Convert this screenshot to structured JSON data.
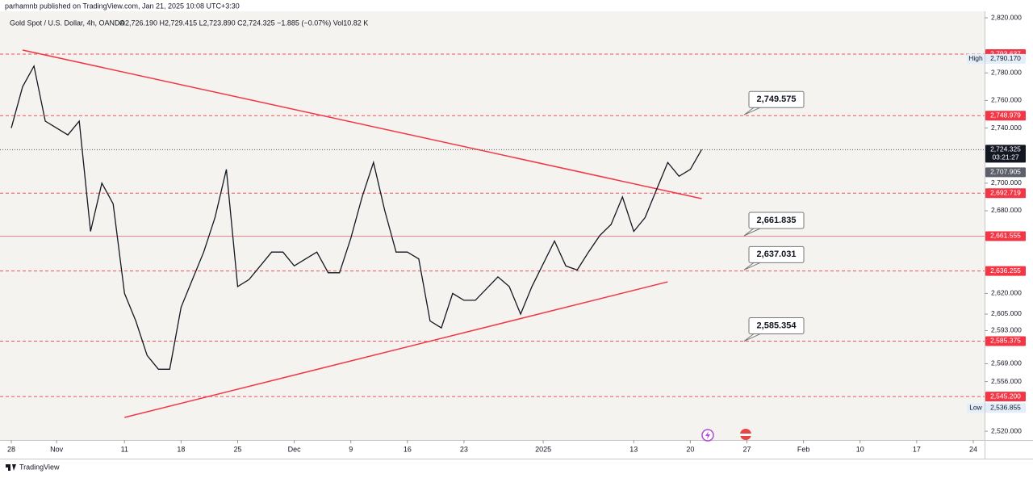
{
  "chart_data": {
    "type": "line",
    "header": "parhamnb published on TradingView.com, Jan 21, 2025 10:08 UTC+3:30",
    "title": "Gold Spot / U.S. Dollar, 4h, OANDA",
    "ohlc": "O2,726.190 H2,729.415 L2,723.890 C2,724.325 −1.885 (−0.07%) Vol10.82 K",
    "brand": "TradingView",
    "xlim": [
      "2024-10-25",
      "2025-02-25"
    ],
    "xticks": [
      {
        "value": "2024-10-28",
        "label": "28"
      },
      {
        "value": "2024-11-01",
        "label": "Nov"
      },
      {
        "value": "2024-11-11",
        "label": "11"
      },
      {
        "value": "2024-11-18",
        "label": "18"
      },
      {
        "value": "2024-11-25",
        "label": "25"
      },
      {
        "value": "2024-12-02",
        "label": "Dec"
      },
      {
        "value": "2024-12-09",
        "label": "9"
      },
      {
        "value": "2024-12-16",
        "label": "16"
      },
      {
        "value": "2024-12-23",
        "label": "23"
      },
      {
        "value": "2025-01-01",
        "label": "2025"
      },
      {
        "value": "2025-01-13",
        "label": "13"
      },
      {
        "value": "2025-01-20",
        "label": "20"
      },
      {
        "value": "2025-01-27",
        "label": "27"
      },
      {
        "value": "2025-02-03",
        "label": "Feb"
      },
      {
        "value": "2025-02-10",
        "label": "10"
      },
      {
        "value": "2025-02-17",
        "label": "17"
      },
      {
        "value": "2025-02-24",
        "label": "24"
      }
    ],
    "ylim": [
      2513.6,
      2832.9
    ],
    "yticks": [
      {
        "value": 2820,
        "label": "2,820.000"
      },
      {
        "value": 2780,
        "label": "2,780.000"
      },
      {
        "value": 2760,
        "label": "2,760.000"
      },
      {
        "value": 2740,
        "label": "2,740.000"
      },
      {
        "value": 2700,
        "label": "2,700.000"
      },
      {
        "value": 2680,
        "label": "2,680.000"
      },
      {
        "value": 2620,
        "label": "2,620.000"
      },
      {
        "value": 2605,
        "label": "2,605.000"
      },
      {
        "value": 2593,
        "label": "2,593.000"
      },
      {
        "value": 2569,
        "label": "2,569.000"
      },
      {
        "value": 2556,
        "label": "2,556.000"
      },
      {
        "value": 2520,
        "label": "2,520.000"
      }
    ],
    "series": [
      {
        "name": "XAUUSD",
        "color": "#131722",
        "x": [
          "2024-10-28",
          "2024-10-29",
          "2024-10-30",
          "2024-10-31",
          "2024-11-01",
          "2024-11-04",
          "2024-11-05",
          "2024-11-06",
          "2024-11-07",
          "2024-11-08",
          "2024-11-11",
          "2024-11-12",
          "2024-11-13",
          "2024-11-14",
          "2024-11-15",
          "2024-11-18",
          "2024-11-19",
          "2024-11-20",
          "2024-11-21",
          "2024-11-22",
          "2024-11-25",
          "2024-11-26",
          "2024-11-27",
          "2024-11-28",
          "2024-11-29",
          "2024-12-02",
          "2024-12-03",
          "2024-12-04",
          "2024-12-05",
          "2024-12-06",
          "2024-12-09",
          "2024-12-10",
          "2024-12-11",
          "2024-12-12",
          "2024-12-13",
          "2024-12-16",
          "2024-12-17",
          "2024-12-18",
          "2024-12-19",
          "2024-12-20",
          "2024-12-23",
          "2024-12-24",
          "2024-12-26",
          "2024-12-27",
          "2024-12-30",
          "2024-12-31",
          "2025-01-02",
          "2025-01-03",
          "2025-01-06",
          "2025-01-07",
          "2025-01-08",
          "2025-01-09",
          "2025-01-10",
          "2025-01-13",
          "2025-01-14",
          "2025-01-15",
          "2025-01-16",
          "2025-01-17",
          "2025-01-20",
          "2025-01-21"
        ],
        "values": [
          2740,
          2770,
          2785,
          2745,
          2740,
          2735,
          2745,
          2665,
          2700,
          2685,
          2620,
          2600,
          2575,
          2565,
          2565,
          2610,
          2630,
          2650,
          2675,
          2710,
          2625,
          2630,
          2640,
          2650,
          2650,
          2640,
          2645,
          2650,
          2635,
          2635,
          2660,
          2690,
          2715,
          2680,
          2650,
          2650,
          2645,
          2600,
          2595,
          2620,
          2615,
          2615,
          2632,
          2625,
          2605,
          2625,
          2658,
          2640,
          2637,
          2650,
          2662,
          2670,
          2690,
          2665,
          2675,
          2695,
          2715,
          2705,
          2710,
          2724.325
        ]
      }
    ],
    "levels": [
      {
        "value": 2793.637,
        "label": "2,793.637",
        "style": "dashed"
      },
      {
        "value": 2748.979,
        "label": "2,748.979",
        "style": "dashed"
      },
      {
        "value": 2692.719,
        "label": "2,692.719",
        "style": "dashed"
      },
      {
        "value": 2661.555,
        "label": "2,661.555",
        "style": "solid"
      },
      {
        "value": 2636.255,
        "label": "2,636.255",
        "style": "dashed"
      },
      {
        "value": 2585.375,
        "label": "2,585.375",
        "style": "dashed"
      },
      {
        "value": 2545.2,
        "label": "2,545.200",
        "style": "dashed"
      }
    ],
    "level_color": "#f23645",
    "callouts": [
      {
        "value": 2749.575,
        "label": "2,749.575"
      },
      {
        "value": 2661.835,
        "label": "2,661.835"
      },
      {
        "value": 2637.031,
        "label": "2,637.031"
      },
      {
        "value": 2585.354,
        "label": "2,585.354"
      }
    ],
    "trendlines": [
      {
        "x": [
          "2024-10-29",
          "2025-01-21"
        ],
        "values": [
          2796.6,
          2688.8
        ]
      },
      {
        "x": [
          "2024-11-11",
          "2025-01-16"
        ],
        "values": [
          2530,
          2628.4
        ]
      }
    ],
    "price_line": {
      "value": 2724.325,
      "label": "2,724.325",
      "countdown": "03:21:27"
    },
    "prev_close": {
      "value": 2707.905,
      "label": "2,707.905"
    },
    "high": {
      "name": "High",
      "value": 2790.17,
      "label": "2,790.170"
    },
    "low": {
      "name": "Low",
      "value": 2536.855,
      "label": "2,536.855"
    }
  }
}
